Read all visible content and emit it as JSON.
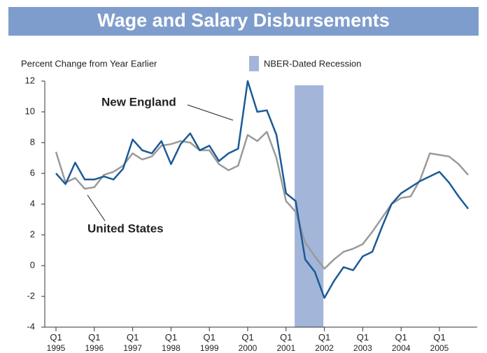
{
  "chart_data": {
    "type": "line",
    "title": "Wage and Salary Disbursements",
    "y_label": "Percent Change from Year Earlier",
    "categories": [
      "Q1 1995",
      null,
      null,
      null,
      "Q1 1996",
      null,
      null,
      null,
      "Q1 1997",
      null,
      null,
      null,
      "Q1 1998",
      null,
      null,
      null,
      "Q1 1999",
      null,
      null,
      null,
      "Q1 2000",
      null,
      null,
      null,
      "Q1 2001",
      null,
      null,
      null,
      "Q1 2002",
      null,
      null,
      null,
      "Q1 2003",
      null,
      null,
      null,
      "Q1 2004",
      null,
      null,
      null,
      "Q1 2005",
      null,
      null,
      null
    ],
    "series": [
      {
        "name": "New England",
        "color": "#1c5a96",
        "values": [
          6.0,
          5.3,
          6.7,
          5.6,
          5.6,
          5.8,
          5.6,
          6.3,
          8.2,
          7.5,
          7.3,
          8.1,
          6.6,
          7.9,
          8.6,
          7.5,
          7.8,
          6.8,
          7.3,
          7.6,
          12.0,
          10.0,
          10.1,
          8.5,
          4.7,
          4.2,
          0.4,
          -0.4,
          -2.1,
          -1.0,
          -0.1,
          -0.3,
          0.6,
          0.9,
          2.5,
          4.0,
          4.7,
          5.1,
          5.5,
          5.8,
          6.1,
          5.4,
          4.5,
          3.7
        ]
      },
      {
        "name": "United States",
        "color": "#9a9a9a",
        "values": [
          7.4,
          5.4,
          5.7,
          5.0,
          5.1,
          5.9,
          6.1,
          6.5,
          7.3,
          6.9,
          7.1,
          7.8,
          7.9,
          8.1,
          8.0,
          7.5,
          7.5,
          6.6,
          6.2,
          6.5,
          8.5,
          8.1,
          8.7,
          7.0,
          4.2,
          3.5,
          1.5,
          0.6,
          -0.2,
          0.4,
          0.9,
          1.1,
          1.4,
          2.2,
          3.1,
          4.0,
          4.4,
          4.5,
          5.6,
          7.3,
          7.2,
          7.1,
          6.6,
          5.9
        ]
      }
    ],
    "recession": {
      "label": "NBER-Dated Recession",
      "start": 24.9,
      "end": 27.9,
      "color": "#a3b5d9"
    },
    "ylim": [
      -4,
      12
    ],
    "yticks": [
      -4,
      -2,
      0,
      2,
      4,
      6,
      8,
      10,
      12
    ]
  }
}
